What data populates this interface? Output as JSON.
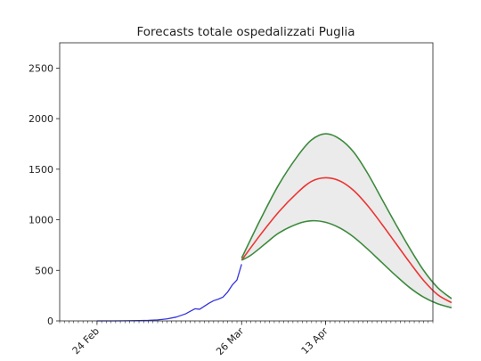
{
  "chart_data": {
    "type": "line",
    "title": "Forecasts totale ospedalizzati Puglia",
    "xlabel": "",
    "ylabel": "",
    "grid": false,
    "ylim": [
      0,
      2750
    ],
    "xlim": [
      "2020-02-16",
      "2020-05-06"
    ],
    "y_ticks": [
      0,
      500,
      1000,
      1500,
      2000,
      2500
    ],
    "x_ticks": [
      {
        "date": "2020-02-24",
        "label": "24 Feb"
      },
      {
        "date": "2020-03-26",
        "label": "26 Mar"
      },
      {
        "date": "2020-04-13",
        "label": "13 Apr"
      }
    ],
    "series": [
      {
        "role": "observed",
        "color": "#3333dd",
        "points": [
          [
            "2020-02-24",
            0
          ],
          [
            "2020-02-27",
            0
          ],
          [
            "2020-03-01",
            1
          ],
          [
            "2020-03-04",
            3
          ],
          [
            "2020-03-06",
            5
          ],
          [
            "2020-03-08",
            10
          ],
          [
            "2020-03-10",
            20
          ],
          [
            "2020-03-12",
            38
          ],
          [
            "2020-03-14",
            70
          ],
          [
            "2020-03-15",
            95
          ],
          [
            "2020-03-16",
            120
          ],
          [
            "2020-03-17",
            115
          ],
          [
            "2020-03-18",
            145
          ],
          [
            "2020-03-19",
            175
          ],
          [
            "2020-03-20",
            200
          ],
          [
            "2020-03-21",
            215
          ],
          [
            "2020-03-22",
            235
          ],
          [
            "2020-03-23",
            285
          ],
          [
            "2020-03-24",
            355
          ],
          [
            "2020-03-25",
            405
          ],
          [
            "2020-03-26",
            560
          ]
        ]
      },
      {
        "role": "forecast",
        "color": "#ee3333",
        "points": [
          [
            "2020-03-26",
            600
          ],
          [
            "2020-03-30",
            850
          ],
          [
            "2020-04-03",
            1080
          ],
          [
            "2020-04-07",
            1270
          ],
          [
            "2020-04-10",
            1380
          ],
          [
            "2020-04-13",
            1415
          ],
          [
            "2020-04-16",
            1385
          ],
          [
            "2020-04-19",
            1290
          ],
          [
            "2020-04-22",
            1140
          ],
          [
            "2020-04-25",
            960
          ],
          [
            "2020-04-28",
            770
          ],
          [
            "2020-05-01",
            580
          ],
          [
            "2020-05-04",
            400
          ],
          [
            "2020-05-07",
            260
          ],
          [
            "2020-05-10",
            180
          ]
        ]
      },
      {
        "role": "forecast-upper",
        "color": "#3d8a3d",
        "points": [
          [
            "2020-03-26",
            620
          ],
          [
            "2020-03-30",
            1000
          ],
          [
            "2020-04-03",
            1350
          ],
          [
            "2020-04-07",
            1630
          ],
          [
            "2020-04-10",
            1790
          ],
          [
            "2020-04-13",
            1850
          ],
          [
            "2020-04-16",
            1800
          ],
          [
            "2020-04-19",
            1670
          ],
          [
            "2020-04-22",
            1460
          ],
          [
            "2020-04-25",
            1210
          ],
          [
            "2020-04-28",
            960
          ],
          [
            "2020-05-01",
            720
          ],
          [
            "2020-05-04",
            500
          ],
          [
            "2020-05-07",
            330
          ],
          [
            "2020-05-10",
            220
          ]
        ]
      },
      {
        "role": "forecast-lower",
        "color": "#3d8a3d",
        "points": [
          [
            "2020-03-26",
            600
          ],
          [
            "2020-03-28",
            650
          ],
          [
            "2020-03-31",
            760
          ],
          [
            "2020-04-03",
            870
          ],
          [
            "2020-04-07",
            960
          ],
          [
            "2020-04-10",
            990
          ],
          [
            "2020-04-13",
            975
          ],
          [
            "2020-04-16",
            920
          ],
          [
            "2020-04-19",
            830
          ],
          [
            "2020-04-22",
            710
          ],
          [
            "2020-04-25",
            580
          ],
          [
            "2020-04-28",
            450
          ],
          [
            "2020-05-01",
            330
          ],
          [
            "2020-05-04",
            235
          ],
          [
            "2020-05-07",
            170
          ],
          [
            "2020-05-10",
            130
          ]
        ]
      }
    ],
    "band": {
      "between": [
        "forecast-upper",
        "forecast-lower"
      ],
      "color": "#ebebeb"
    }
  }
}
